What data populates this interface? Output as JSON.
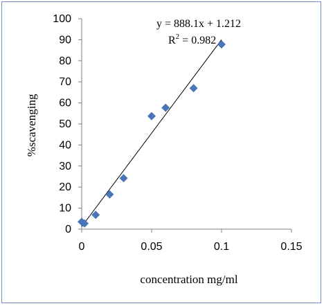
{
  "chart_data": {
    "type": "scatter",
    "xlabel": "concentration mg/ml",
    "ylabel": "%scavenging",
    "xlim": [
      0,
      0.15
    ],
    "ylim": [
      0,
      100
    ],
    "x_ticks": [
      "0",
      "0.05",
      "0.1",
      "0.15"
    ],
    "y_ticks": [
      "0",
      "10",
      "20",
      "30",
      "40",
      "50",
      "60",
      "70",
      "80",
      "90",
      "100"
    ],
    "grid": false,
    "marker": "diamond",
    "marker_color": "#4a76b8",
    "series": [
      {
        "points": [
          [
            0,
            3.5
          ],
          [
            0.002,
            2.7
          ],
          [
            0.01,
            6.8
          ],
          [
            0.02,
            16.5
          ],
          [
            0.03,
            24.2
          ],
          [
            0.05,
            53.7
          ],
          [
            0.06,
            57.7
          ],
          [
            0.08,
            67.0
          ],
          [
            0.1,
            87.8
          ]
        ]
      }
    ],
    "trendline": {
      "slope": 888.1,
      "intercept": 1.212,
      "x_range": [
        0,
        0.1
      ],
      "color": "#000000"
    },
    "annotations": {
      "equation": "y = 888.1x + 1.212",
      "r2_prefix": "R",
      "r2_sup": "2",
      "r2_suffix": " = 0.982"
    }
  }
}
